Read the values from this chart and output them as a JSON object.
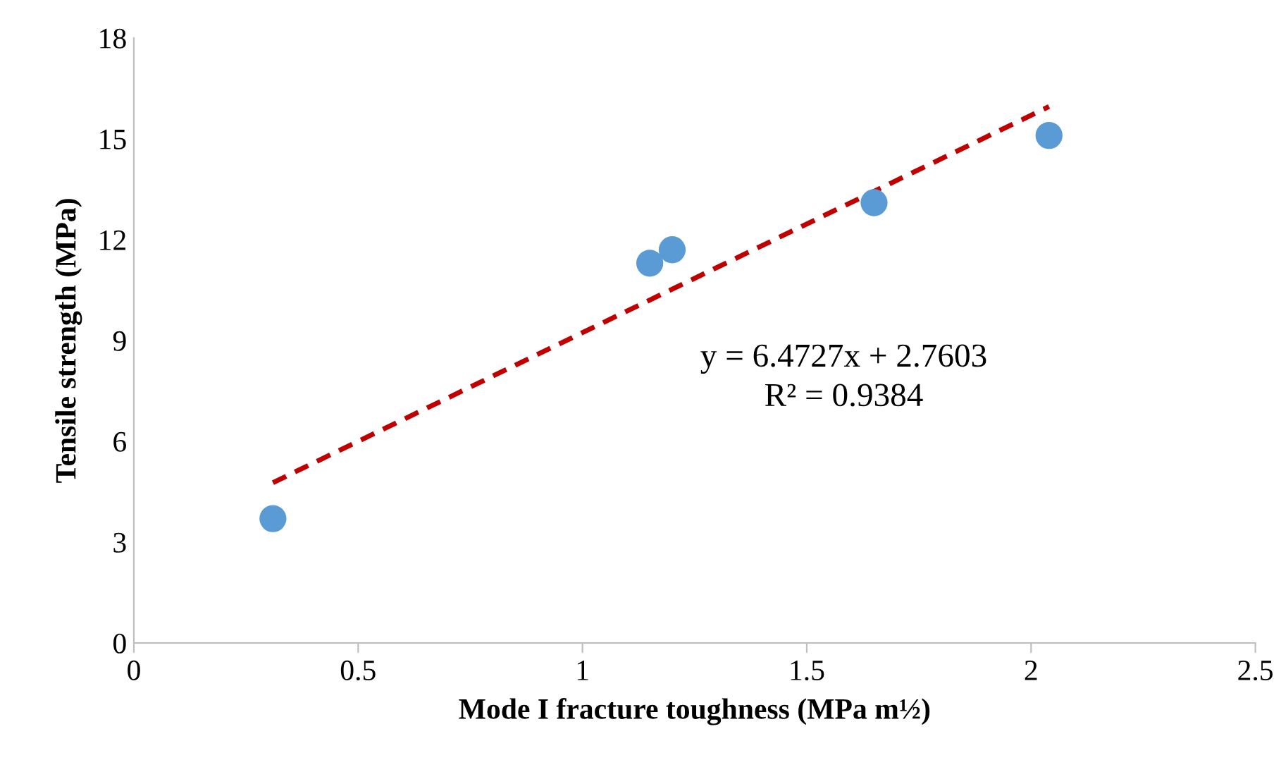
{
  "chart_data": {
    "type": "scatter",
    "xlabel": "Mode I fracture toughness (MPa m½)",
    "ylabel": "Tensile strength (MPa)",
    "annotations": [
      "y = 6.4727x + 2.7603",
      "R² = 0.9384"
    ],
    "series": [
      {
        "color": "#5b9bd5",
        "x": [
          0.31,
          1.15,
          1.2,
          1.65,
          2.04
        ],
        "values": [
          3.7,
          11.3,
          11.7,
          13.1,
          15.1
        ],
        "marker": "circle"
      },
      {
        "type": "line",
        "color": "#c00000",
        "line_style": "dashed",
        "x": [
          0.31,
          2.04
        ],
        "values": [
          4.77,
          15.96
        ]
      }
    ],
    "xlim": [
      0,
      2.5
    ],
    "xticks": [
      0,
      0.5,
      1,
      1.5,
      2,
      2.5
    ],
    "ylim": [
      0,
      18
    ],
    "yticks": [
      0,
      3,
      6,
      9,
      12,
      15,
      18
    ],
    "grid": false,
    "legend": false
  }
}
